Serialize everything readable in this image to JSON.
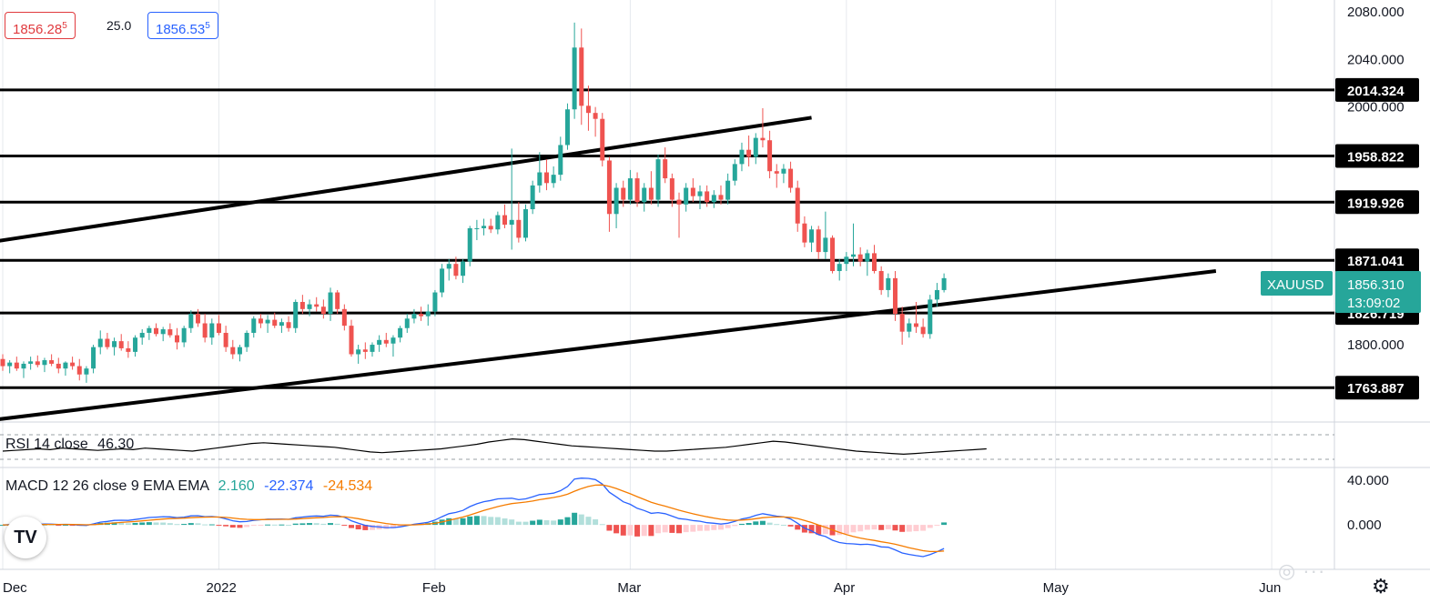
{
  "quote": {
    "sell_price": "1856.28",
    "sell_price_sup": "5",
    "spread": "25.0",
    "buy_price": "1856.53",
    "buy_price_sup": "5",
    "sell_color": "#e03a3e",
    "buy_color": "#2962ff"
  },
  "colors": {
    "up": "#26a69a",
    "down": "#ef5350",
    "line": "#000000",
    "grid": "#e6e9ee",
    "rsi": "#000000",
    "macd": "#2962ff",
    "signal": "#f57c00",
    "hist_up": "#26a69a",
    "hist_up_light": "#b2dfdb",
    "hist_down": "#ef5350",
    "hist_down_light": "#ffcdd2"
  },
  "price_axis": {
    "min": 1735,
    "max": 2090,
    "ticks": [
      "2080.000",
      "2040.000",
      "2000.000",
      "1800.000"
    ],
    "tick_values": [
      2080,
      2040,
      2000,
      1800
    ]
  },
  "x_axis": {
    "labels": [
      "Dec",
      "2022",
      "Feb",
      "Mar",
      "Apr",
      "May",
      "Jun"
    ],
    "label_days": [
      0,
      31,
      62,
      90,
      121,
      151,
      182
    ]
  },
  "symbol": {
    "name": "XAUUSD",
    "price": "1856.310",
    "countdown": "13:09:02",
    "price_value": 1856.31
  },
  "levels": [
    {
      "label": "2014.324",
      "value": 2014.324
    },
    {
      "label": "1958.822",
      "value": 1958.822
    },
    {
      "label": "1919.926",
      "value": 1919.926
    },
    {
      "label": "1871.041",
      "value": 1871.041
    },
    {
      "label": "1826.719",
      "value": 1826.719
    },
    {
      "label": "1763.887",
      "value": 1763.887
    }
  ],
  "trendlines": [
    {
      "from": {
        "day": -1,
        "price": 1887
      },
      "to": {
        "day": 116,
        "price": 1991
      }
    },
    {
      "from": {
        "day": -1,
        "price": 1737
      },
      "to": {
        "day": 174,
        "price": 1862
      }
    }
  ],
  "rsi": {
    "label": "RSI 14 close",
    "value": "46.30",
    "values": [
      44,
      45,
      46,
      47,
      46,
      48,
      47,
      46,
      45,
      46,
      47,
      46,
      48,
      47,
      46,
      45,
      44,
      46,
      48,
      50,
      52,
      54,
      55,
      54,
      53,
      52,
      51,
      50,
      49,
      47,
      45,
      43,
      42,
      43,
      44,
      45,
      46,
      47,
      49,
      51,
      53,
      56,
      58,
      60,
      59,
      57,
      55,
      53,
      51,
      50,
      49,
      48,
      47,
      46,
      45,
      44,
      44,
      45,
      46,
      47,
      48,
      49,
      51,
      53,
      55,
      57,
      56,
      54,
      52,
      50,
      48,
      46,
      44,
      43,
      42,
      41,
      40,
      41,
      42,
      43,
      44,
      45,
      46,
      47
    ]
  },
  "macd": {
    "label": "MACD 12 26 close 9 EMA EMA",
    "hist_value": "2.160",
    "macd_value": "-22.374",
    "signal_value": "-24.534",
    "axis_ticks": [
      "40.000",
      "0.000"
    ],
    "axis_tick_values": [
      40,
      0
    ],
    "min": -40,
    "max": 50
  },
  "chart_data": {
    "type": "candlestick",
    "symbol": "XAUUSD",
    "timeframe": "1D",
    "x_start": "2021-11-29",
    "candles": [
      [
        1788,
        1792,
        1778,
        1782
      ],
      [
        1782,
        1787,
        1776,
        1785
      ],
      [
        1785,
        1790,
        1778,
        1780
      ],
      [
        1780,
        1786,
        1772,
        1784
      ],
      [
        1784,
        1790,
        1779,
        1786
      ],
      [
        1786,
        1791,
        1781,
        1783
      ],
      [
        1783,
        1789,
        1777,
        1787
      ],
      [
        1787,
        1792,
        1782,
        1784
      ],
      [
        1784,
        1789,
        1776,
        1780
      ],
      [
        1780,
        1786,
        1774,
        1785
      ],
      [
        1785,
        1790,
        1779,
        1782
      ],
      [
        1782,
        1788,
        1770,
        1775
      ],
      [
        1775,
        1782,
        1768,
        1780
      ],
      [
        1780,
        1800,
        1776,
        1798
      ],
      [
        1798,
        1812,
        1792,
        1805
      ],
      [
        1805,
        1810,
        1796,
        1798
      ],
      [
        1798,
        1806,
        1791,
        1803
      ],
      [
        1803,
        1809,
        1795,
        1797
      ],
      [
        1797,
        1803,
        1789,
        1794
      ],
      [
        1794,
        1808,
        1790,
        1806
      ],
      [
        1806,
        1813,
        1800,
        1810
      ],
      [
        1810,
        1816,
        1804,
        1814
      ],
      [
        1814,
        1818,
        1807,
        1809
      ],
      [
        1809,
        1815,
        1803,
        1813
      ],
      [
        1813,
        1818,
        1806,
        1808
      ],
      [
        1808,
        1814,
        1796,
        1802
      ],
      [
        1802,
        1816,
        1798,
        1814
      ],
      [
        1814,
        1829,
        1810,
        1826
      ],
      [
        1826,
        1830,
        1815,
        1818
      ],
      [
        1818,
        1826,
        1802,
        1806
      ],
      [
        1806,
        1822,
        1800,
        1818
      ],
      [
        1818,
        1825,
        1808,
        1810
      ],
      [
        1810,
        1816,
        1794,
        1798
      ],
      [
        1798,
        1804,
        1788,
        1792
      ],
      [
        1792,
        1800,
        1786,
        1798
      ],
      [
        1798,
        1812,
        1794,
        1810
      ],
      [
        1810,
        1824,
        1806,
        1822
      ],
      [
        1822,
        1826,
        1814,
        1818
      ],
      [
        1818,
        1825,
        1810,
        1821
      ],
      [
        1821,
        1827,
        1814,
        1816
      ],
      [
        1816,
        1822,
        1810,
        1819
      ],
      [
        1819,
        1824,
        1811,
        1814
      ],
      [
        1814,
        1838,
        1810,
        1836
      ],
      [
        1836,
        1842,
        1826,
        1830
      ],
      [
        1830,
        1838,
        1824,
        1834
      ],
      [
        1834,
        1840,
        1828,
        1832
      ],
      [
        1832,
        1838,
        1822,
        1826
      ],
      [
        1826,
        1848,
        1820,
        1844
      ],
      [
        1844,
        1846,
        1826,
        1830
      ],
      [
        1830,
        1834,
        1812,
        1816
      ],
      [
        1816,
        1821,
        1790,
        1792
      ],
      [
        1792,
        1800,
        1784,
        1796
      ],
      [
        1796,
        1802,
        1788,
        1794
      ],
      [
        1794,
        1802,
        1790,
        1800
      ],
      [
        1800,
        1808,
        1794,
        1804
      ],
      [
        1804,
        1810,
        1798,
        1801
      ],
      [
        1801,
        1808,
        1790,
        1806
      ],
      [
        1806,
        1816,
        1802,
        1814
      ],
      [
        1814,
        1826,
        1810,
        1822
      ],
      [
        1822,
        1830,
        1818,
        1826
      ],
      [
        1826,
        1832,
        1820,
        1824
      ],
      [
        1824,
        1834,
        1816,
        1828
      ],
      [
        1828,
        1846,
        1824,
        1844
      ],
      [
        1844,
        1868,
        1840,
        1864
      ],
      [
        1864,
        1872,
        1854,
        1868
      ],
      [
        1868,
        1874,
        1855,
        1858
      ],
      [
        1858,
        1872,
        1852,
        1870
      ],
      [
        1870,
        1900,
        1866,
        1898
      ],
      [
        1898,
        1905,
        1888,
        1898
      ],
      [
        1898,
        1906,
        1892,
        1900
      ],
      [
        1900,
        1906,
        1894,
        1897
      ],
      [
        1897,
        1912,
        1893,
        1909
      ],
      [
        1909,
        1918,
        1898,
        1901
      ],
      [
        1901,
        1965,
        1880,
        1905
      ],
      [
        1905,
        1920,
        1886,
        1890
      ],
      [
        1890,
        1918,
        1887,
        1914
      ],
      [
        1914,
        1938,
        1910,
        1934
      ],
      [
        1934,
        1962,
        1928,
        1945
      ],
      [
        1945,
        1956,
        1930,
        1936
      ],
      [
        1936,
        1950,
        1932,
        1943
      ],
      [
        1943,
        1975,
        1938,
        1968
      ],
      [
        1968,
        2003,
        1964,
        1998
      ],
      [
        1998,
        2071,
        1990,
        2050
      ],
      [
        2050,
        2066,
        1985,
        2001
      ],
      [
        2001,
        2018,
        1980,
        1995
      ],
      [
        1995,
        2000,
        1975,
        1990
      ],
      [
        1990,
        1995,
        1950,
        1955
      ],
      [
        1955,
        1958,
        1895,
        1910
      ],
      [
        1910,
        1936,
        1898,
        1932
      ],
      [
        1932,
        1938,
        1916,
        1922
      ],
      [
        1922,
        1947,
        1918,
        1940
      ],
      [
        1940,
        1945,
        1916,
        1920
      ],
      [
        1920,
        1936,
        1912,
        1932
      ],
      [
        1932,
        1946,
        1918,
        1922
      ],
      [
        1922,
        1960,
        1916,
        1956
      ],
      [
        1956,
        1966,
        1936,
        1940
      ],
      [
        1940,
        1944,
        1916,
        1922
      ],
      [
        1922,
        1928,
        1890,
        1918
      ],
      [
        1918,
        1936,
        1912,
        1932
      ],
      [
        1932,
        1940,
        1920,
        1925
      ],
      [
        1925,
        1934,
        1914,
        1929
      ],
      [
        1929,
        1934,
        1916,
        1920
      ],
      [
        1920,
        1930,
        1915,
        1926
      ],
      [
        1926,
        1934,
        1918,
        1922
      ],
      [
        1922,
        1944,
        1918,
        1938
      ],
      [
        1938,
        1956,
        1934,
        1952
      ],
      [
        1952,
        1970,
        1946,
        1964
      ],
      [
        1964,
        1976,
        1950,
        1958
      ],
      [
        1958,
        1978,
        1952,
        1974
      ],
      [
        1974,
        1999,
        1966,
        1972
      ],
      [
        1972,
        1980,
        1940,
        1946
      ],
      [
        1946,
        1952,
        1932,
        1944
      ],
      [
        1944,
        1952,
        1936,
        1948
      ],
      [
        1948,
        1954,
        1928,
        1932
      ],
      [
        1932,
        1938,
        1895,
        1902
      ],
      [
        1902,
        1908,
        1882,
        1886
      ],
      [
        1886,
        1900,
        1878,
        1897
      ],
      [
        1897,
        1900,
        1872,
        1878
      ],
      [
        1878,
        1912,
        1872,
        1890
      ],
      [
        1890,
        1892,
        1860,
        1862
      ],
      [
        1862,
        1872,
        1854,
        1868
      ],
      [
        1868,
        1878,
        1862,
        1874
      ],
      [
        1874,
        1902,
        1866,
        1876
      ],
      [
        1876,
        1882,
        1866,
        1870
      ],
      [
        1870,
        1880,
        1858,
        1877
      ],
      [
        1877,
        1884,
        1860,
        1862
      ],
      [
        1862,
        1866,
        1842,
        1846
      ],
      [
        1846,
        1860,
        1840,
        1856
      ],
      [
        1856,
        1862,
        1820,
        1826
      ],
      [
        1826,
        1832,
        1800,
        1811
      ],
      [
        1811,
        1822,
        1806,
        1818
      ],
      [
        1818,
        1836,
        1810,
        1815
      ],
      [
        1815,
        1822,
        1806,
        1809
      ],
      [
        1809,
        1842,
        1805,
        1838
      ],
      [
        1838,
        1852,
        1832,
        1846
      ],
      [
        1846,
        1860,
        1844,
        1856
      ]
    ]
  }
}
